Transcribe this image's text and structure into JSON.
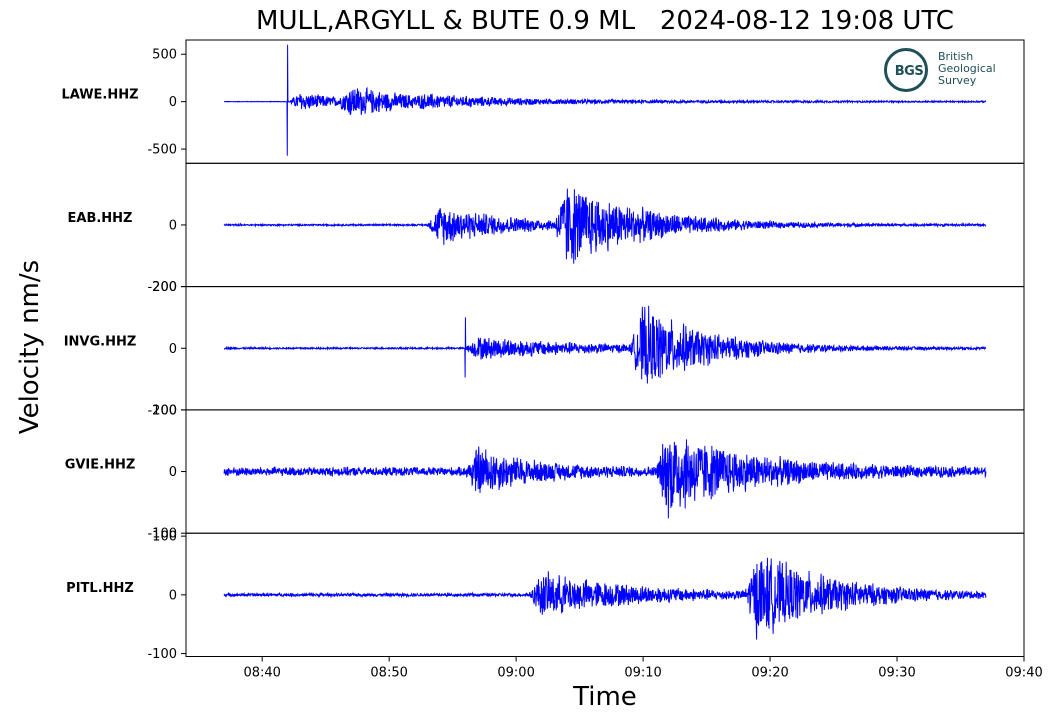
{
  "chart_data": {
    "type": "line",
    "title": "MULL,ARGYLL & BUTE 0.9 ML   2024-08-12 19:08 UTC",
    "ylabel": "Velocity nm/s",
    "xlabel": "Time",
    "x_ticks": [
      "08:40",
      "08:50",
      "09:00",
      "09:10",
      "09:20",
      "09:30",
      "09:40"
    ],
    "x_range": [
      "08:34",
      "09:40"
    ],
    "trace_time_range": [
      "08:37",
      "09:37"
    ],
    "line_color": "#0000ff",
    "grid": false,
    "panels": [
      {
        "station": "LAWE.HHZ",
        "ylim": [
          -650,
          650
        ],
        "y_ticks": [
          500,
          0,
          -500
        ],
        "y_tick_labels": [
          "500",
          "0",
          "-500"
        ],
        "noise": 3,
        "events": [
          {
            "onset": "08:42",
            "peak": 110,
            "spike": 600,
            "decay_min": 4
          },
          {
            "onset": "08:46",
            "peak": 150,
            "decay_min": 6
          },
          {
            "onset": "08:52",
            "peak": 30,
            "decay_min": 25
          }
        ]
      },
      {
        "station": "EAB.HHZ",
        "ylim": [
          -200,
          200
        ],
        "y_ticks": [
          0,
          -200
        ],
        "y_tick_labels": [
          "0",
          "-200"
        ],
        "noise": 3,
        "events": [
          {
            "onset": "08:53",
            "peak": 70,
            "decay_min": 6
          },
          {
            "onset": "09:03",
            "peak": 140,
            "decay_min": 6
          }
        ]
      },
      {
        "station": "INVG.HHZ",
        "ylim": [
          -200,
          200
        ],
        "y_ticks": [
          200,
          0,
          -200
        ],
        "y_tick_labels": [
          "200",
          "0",
          "-200"
        ],
        "noise": 3,
        "events": [
          {
            "onset": "08:56",
            "peak": 40,
            "spike": 100,
            "decay_min": 10
          },
          {
            "onset": "09:09",
            "peak": 140,
            "decay_min": 5
          }
        ]
      },
      {
        "station": "GVIE.HHZ",
        "ylim": [
          -100,
          100
        ],
        "y_ticks": [
          100,
          0,
          -100
        ],
        "y_tick_labels": [
          "100",
          "0",
          "-100"
        ],
        "noise": 8,
        "events": [
          {
            "onset": "08:56",
            "peak": 40,
            "decay_min": 4
          },
          {
            "onset": "09:11",
            "peak": 75,
            "decay_min": 6
          }
        ]
      },
      {
        "station": "PITL.HHZ",
        "ylim": [
          -105,
          105
        ],
        "y_ticks": [
          100,
          0,
          -100
        ],
        "y_tick_labels": [
          "100",
          "0",
          "-100"
        ],
        "noise": 3,
        "events": [
          {
            "onset": "09:01",
            "peak": 40,
            "decay_min": 8
          },
          {
            "onset": "09:18",
            "peak": 75,
            "decay_min": 6
          }
        ]
      }
    ]
  },
  "logo": {
    "initials": "BGS",
    "lines": [
      "British",
      "Geological",
      "Survey"
    ]
  }
}
